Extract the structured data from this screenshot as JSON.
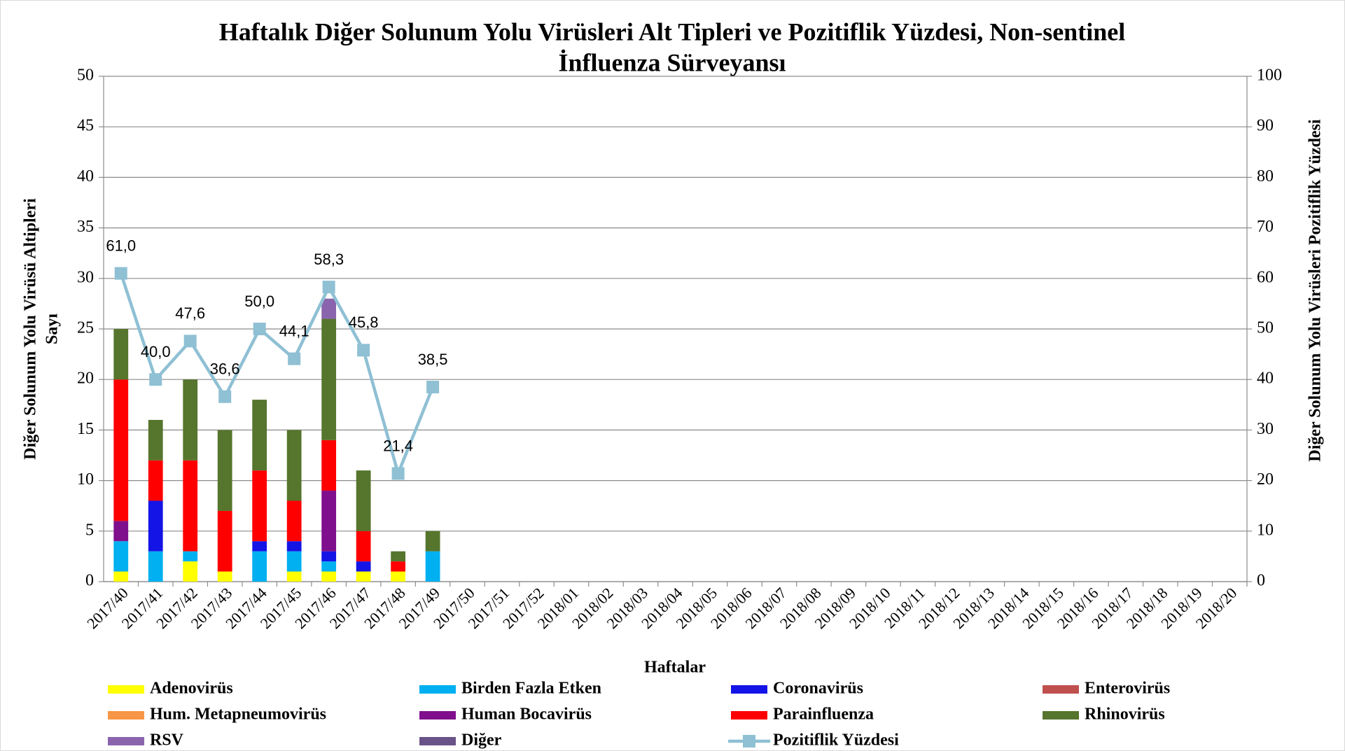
{
  "chart_data": {
    "type": "bar",
    "stacked": true,
    "title": [
      "Haftalık Diğer Solunum Yolu Virüsleri Alt Tipleri ve Pozitiflik Yüzdesi, Non-sentinel",
      "İnfluenza Sürveyansı"
    ],
    "ylabel": [
      "Diğer Solunum Yolu Virüsü Altipleri",
      "Sayı"
    ],
    "y2label": "Diğer Solunum Yolu Virüsleri Pozitiflik Yüzdesi",
    "xlabel": "Haftalar",
    "categories": [
      "2017/40",
      "2017/41",
      "2017/42",
      "2017/43",
      "2017/44",
      "2017/45",
      "2017/46",
      "2017/47",
      "2017/48",
      "2017/49",
      "2017/50",
      "2017/51",
      "2017/52",
      "2018/01",
      "2018/02",
      "2018/03",
      "2018/04",
      "2018/05",
      "2018/06",
      "2018/07",
      "2018/08",
      "2018/09",
      "2018/10",
      "2018/11",
      "2018/12",
      "2018/13",
      "2018/14",
      "2018/15",
      "2018/16",
      "2018/17",
      "2018/18",
      "2018/19",
      "2018/20"
    ],
    "ylim": [
      0,
      50
    ],
    "yticks": [
      0,
      5,
      10,
      15,
      20,
      25,
      30,
      35,
      40,
      45,
      50
    ],
    "y2lim": [
      0,
      100
    ],
    "y2ticks": [
      0,
      10,
      20,
      30,
      40,
      50,
      60,
      70,
      80,
      90,
      100
    ],
    "grid": true,
    "legend": "bottom",
    "series": [
      {
        "name": "Adenovirüs",
        "color": "#ffff00",
        "values": [
          1,
          0,
          2,
          1,
          0,
          1,
          1,
          1,
          1,
          0,
          null,
          null,
          null,
          null,
          null,
          null,
          null,
          null,
          null,
          null,
          null,
          null,
          null,
          null,
          null,
          null,
          null,
          null,
          null,
          null,
          null,
          null,
          null
        ]
      },
      {
        "name": "Birden Fazla Etken",
        "color": "#00b0f0",
        "values": [
          3,
          3,
          1,
          0,
          3,
          2,
          1,
          0,
          0,
          3,
          null,
          null,
          null,
          null,
          null,
          null,
          null,
          null,
          null,
          null,
          null,
          null,
          null,
          null,
          null,
          null,
          null,
          null,
          null,
          null,
          null,
          null,
          null
        ]
      },
      {
        "name": "Coronavirüs",
        "color": "#1414e6",
        "values": [
          0,
          5,
          0,
          0,
          1,
          1,
          1,
          1,
          0,
          0,
          null,
          null,
          null,
          null,
          null,
          null,
          null,
          null,
          null,
          null,
          null,
          null,
          null,
          null,
          null,
          null,
          null,
          null,
          null,
          null,
          null,
          null,
          null
        ]
      },
      {
        "name": "Enterovirüs",
        "color": "#c0504d",
        "values": [
          0,
          0,
          0,
          0,
          0,
          0,
          0,
          0,
          0,
          0,
          null,
          null,
          null,
          null,
          null,
          null,
          null,
          null,
          null,
          null,
          null,
          null,
          null,
          null,
          null,
          null,
          null,
          null,
          null,
          null,
          null,
          null,
          null
        ]
      },
      {
        "name": "Hum. Metapneumovirüs",
        "color": "#f79646",
        "values": [
          0,
          0,
          0,
          0,
          0,
          0,
          0,
          0,
          0,
          0,
          null,
          null,
          null,
          null,
          null,
          null,
          null,
          null,
          null,
          null,
          null,
          null,
          null,
          null,
          null,
          null,
          null,
          null,
          null,
          null,
          null,
          null,
          null
        ]
      },
      {
        "name": "Human Bocavirüs",
        "color": "#7f0f8c",
        "values": [
          2,
          0,
          0,
          0,
          0,
          0,
          6,
          0,
          0,
          0,
          null,
          null,
          null,
          null,
          null,
          null,
          null,
          null,
          null,
          null,
          null,
          null,
          null,
          null,
          null,
          null,
          null,
          null,
          null,
          null,
          null,
          null,
          null
        ]
      },
      {
        "name": "Parainfluenza",
        "color": "#ff0000",
        "values": [
          14,
          4,
          9,
          6,
          7,
          4,
          5,
          3,
          1,
          0,
          null,
          null,
          null,
          null,
          null,
          null,
          null,
          null,
          null,
          null,
          null,
          null,
          null,
          null,
          null,
          null,
          null,
          null,
          null,
          null,
          null,
          null,
          null
        ]
      },
      {
        "name": "Rhinovirüs",
        "color": "#56752d",
        "values": [
          5,
          4,
          8,
          8,
          7,
          7,
          12,
          6,
          1,
          2,
          null,
          null,
          null,
          null,
          null,
          null,
          null,
          null,
          null,
          null,
          null,
          null,
          null,
          null,
          null,
          null,
          null,
          null,
          null,
          null,
          null,
          null,
          null
        ]
      },
      {
        "name": "RSV",
        "color": "#8a64ad",
        "values": [
          0,
          0,
          0,
          0,
          0,
          0,
          2,
          0,
          0,
          0,
          null,
          null,
          null,
          null,
          null,
          null,
          null,
          null,
          null,
          null,
          null,
          null,
          null,
          null,
          null,
          null,
          null,
          null,
          null,
          null,
          null,
          null,
          null
        ]
      },
      {
        "name": "Diğer",
        "color": "#6a5388",
        "values": [
          0,
          0,
          0,
          0,
          0,
          0,
          0,
          0,
          0,
          0,
          null,
          null,
          null,
          null,
          null,
          null,
          null,
          null,
          null,
          null,
          null,
          null,
          null,
          null,
          null,
          null,
          null,
          null,
          null,
          null,
          null,
          null,
          null
        ]
      },
      {
        "name": "Pozitiflik Yüzdesi",
        "color": "#8fc0d4",
        "type": "line",
        "axis": "y2",
        "values": [
          61.0,
          40.0,
          47.6,
          36.6,
          50.0,
          44.1,
          58.3,
          45.8,
          21.4,
          38.5,
          null,
          null,
          null,
          null,
          null,
          null,
          null,
          null,
          null,
          null,
          null,
          null,
          null,
          null,
          null,
          null,
          null,
          null,
          null,
          null,
          null,
          null,
          null
        ],
        "value_labels": [
          "61,0",
          "40,0",
          "47,6",
          "36,6",
          "50,0",
          "44,1",
          "58,3",
          "45,8",
          "21,4",
          "38,5",
          null,
          null,
          null,
          null,
          null,
          null,
          null,
          null,
          null,
          null,
          null,
          null,
          null,
          null,
          null,
          null,
          null,
          null,
          null,
          null,
          null,
          null,
          null
        ]
      }
    ]
  }
}
